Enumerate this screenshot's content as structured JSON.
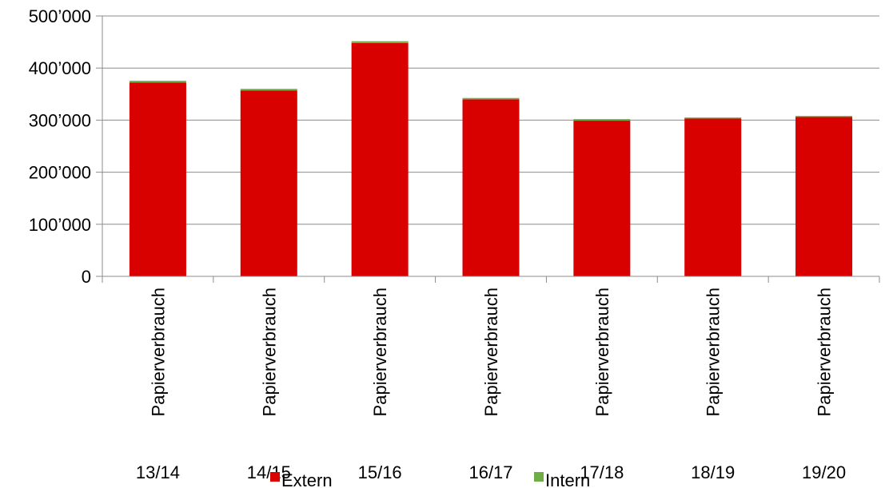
{
  "chart_data": {
    "type": "bar",
    "stacked": true,
    "title": "",
    "xlabel": "",
    "ylabel": "",
    "categories": [
      "Papierverbrauch",
      "Papierverbrauch",
      "Papierverbrauch",
      "Papierverbrauch",
      "Papierverbrauch",
      "Papierverbrauch",
      "Papierverbrauch"
    ],
    "group_labels": [
      "13/14",
      "14/15",
      "15/16",
      "16/17",
      "17/18",
      "18/19",
      "19/20"
    ],
    "series": [
      {
        "name": "Extern",
        "color": "#d90000",
        "values": [
          372000,
          357000,
          448000,
          340000,
          299000,
          303000,
          306000
        ]
      },
      {
        "name": "Intern",
        "color": "#6fad46",
        "values": [
          3500,
          3000,
          3500,
          2500,
          3000,
          2000,
          2000
        ]
      }
    ],
    "ylim": [
      0,
      500000
    ],
    "yticks": [
      0,
      100000,
      200000,
      300000,
      400000,
      500000
    ],
    "ytick_labels": [
      "0",
      "100’000",
      "200’000",
      "300’000",
      "400’000",
      "500’000"
    ],
    "grid": true,
    "legend_position": "bottom"
  }
}
